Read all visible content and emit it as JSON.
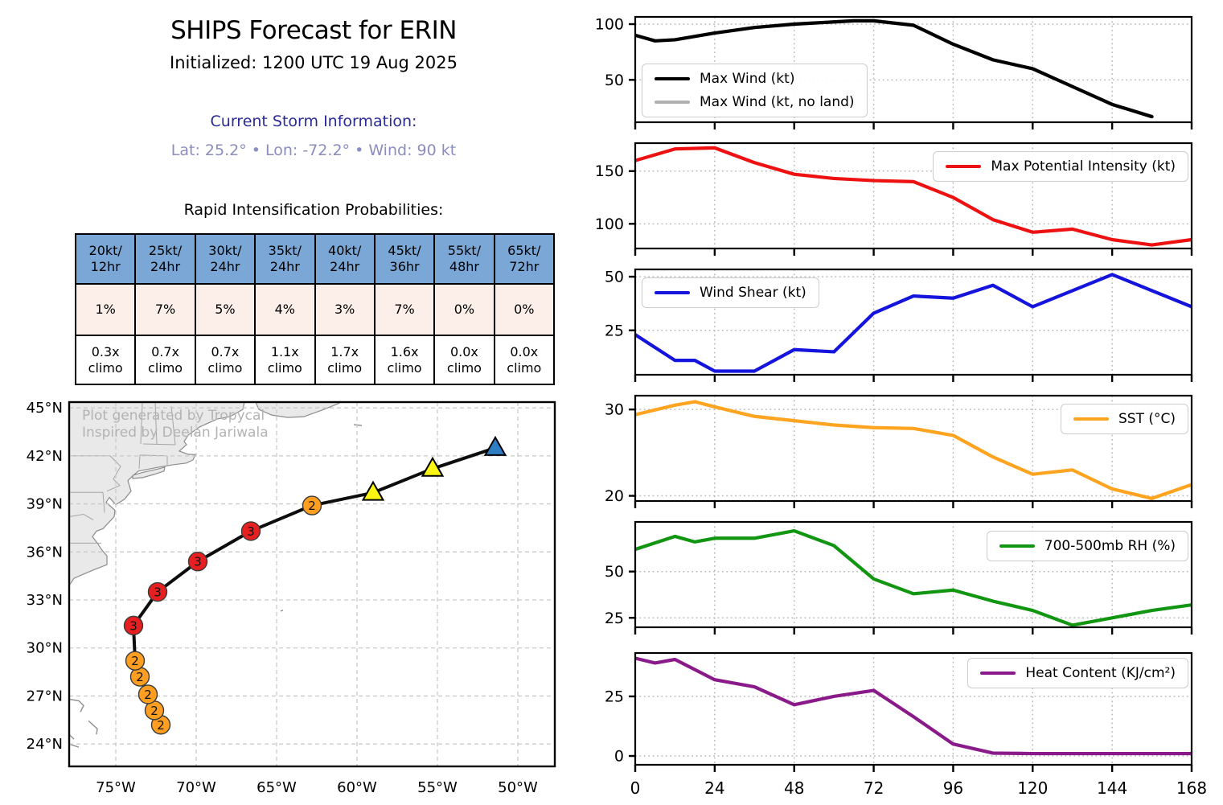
{
  "header": {
    "title": "SHIPS Forecast for ERIN",
    "initialized": "Initialized: 1200 UTC 19 Aug 2025",
    "storm_info_heading": "Current Storm Information:",
    "storm_info": "Lat: 25.2°  •  Lon: -72.2°  •  Wind: 90 kt"
  },
  "ri_table": {
    "title": "Rapid Intensification Probabilities:",
    "headers": [
      "20kt/\n12hr",
      "25kt/\n24hr",
      "30kt/\n24hr",
      "35kt/\n24hr",
      "40kt/\n24hr",
      "45kt/\n36hr",
      "55kt/\n48hr",
      "65kt/\n72hr"
    ],
    "probabilities": [
      "1%",
      "7%",
      "5%",
      "4%",
      "3%",
      "7%",
      "0%",
      "0%"
    ],
    "climo": [
      "0.3x\nclimo",
      "0.7x\nclimo",
      "0.7x\nclimo",
      "1.1x\nclimo",
      "1.7x\nclimo",
      "1.6x\nclimo",
      "0.0x\nclimo",
      "0.0x\nclimo"
    ]
  },
  "map": {
    "watermark_line1": "Plot generated by Tropycal",
    "watermark_line2": "Inspired by Deelan Jariwala",
    "view": {
      "lon_min": -77.9,
      "lon_max": -47.7,
      "lat_min": 22.6,
      "lat_max": 45.36
    },
    "lon_ticks": [
      {
        "lon": -75,
        "label": "75°W"
      },
      {
        "lon": -70,
        "label": "70°W"
      },
      {
        "lon": -65,
        "label": "65°W"
      },
      {
        "lon": -60,
        "label": "60°W"
      },
      {
        "lon": -55,
        "label": "55°W"
      },
      {
        "lon": -50,
        "label": "50°W"
      }
    ],
    "lat_ticks": [
      {
        "lat": 45,
        "label": "45°N"
      },
      {
        "lat": 42,
        "label": "42°N"
      },
      {
        "lat": 39,
        "label": "39°N"
      },
      {
        "lat": 36,
        "label": "36°N"
      },
      {
        "lat": 33,
        "label": "33°N"
      },
      {
        "lat": 30,
        "label": "30°N"
      },
      {
        "lat": 27,
        "label": "27°N"
      },
      {
        "lat": 24,
        "label": "24°N"
      }
    ],
    "colors": {
      "land": "#e9e9e9",
      "coast": "#8c8c8c",
      "grid": "#c9c9c9",
      "track": "#0d0d0d",
      "cat2": "#FF9E21",
      "cat3": "#E62020",
      "storm_yellow": "#FAF513",
      "blue_marker": "#2F7DC3"
    },
    "track": [
      {
        "lat": 25.2,
        "lon": -72.2,
        "marker": "circle",
        "color": "#FF9E21",
        "label": "2"
      },
      {
        "lat": 26.1,
        "lon": -72.6,
        "marker": "circle",
        "color": "#FF9E21",
        "label": "2"
      },
      {
        "lat": 27.1,
        "lon": -73.0,
        "marker": "circle",
        "color": "#FF9E21",
        "label": "2"
      },
      {
        "lat": 28.2,
        "lon": -73.5,
        "marker": "circle",
        "color": "#FF9E21",
        "label": "2"
      },
      {
        "lat": 29.2,
        "lon": -73.8,
        "marker": "circle",
        "color": "#FF9E21",
        "label": "2"
      },
      {
        "lat": 31.4,
        "lon": -73.9,
        "marker": "circle",
        "color": "#E62020",
        "label": "3"
      },
      {
        "lat": 33.5,
        "lon": -72.4,
        "marker": "circle",
        "color": "#E62020",
        "label": "3"
      },
      {
        "lat": 35.4,
        "lon": -69.9,
        "marker": "circle",
        "color": "#E62020",
        "label": "3"
      },
      {
        "lat": 37.3,
        "lon": -66.6,
        "marker": "circle",
        "color": "#E62020",
        "label": "3"
      },
      {
        "lat": 38.9,
        "lon": -62.8,
        "marker": "circle",
        "color": "#FF9E21",
        "label": "2"
      },
      {
        "lat": 39.7,
        "lon": -59.0,
        "marker": "triangle",
        "color": "#FAF513",
        "label": ""
      },
      {
        "lat": 41.2,
        "lon": -55.3,
        "marker": "triangle",
        "color": "#FAF513",
        "label": ""
      },
      {
        "lat": 42.5,
        "lon": -51.4,
        "marker": "triangle",
        "color": "#2F7DC3",
        "label": ""
      }
    ],
    "coastlines": {
      "land_polys": [
        [
          [
            -77.9,
            45.36
          ],
          [
            -67.0,
            45.36
          ],
          [
            -67.1,
            44.9
          ],
          [
            -67.9,
            44.45
          ],
          [
            -68.7,
            44.3
          ],
          [
            -69.8,
            43.8
          ],
          [
            -70.5,
            43.3
          ],
          [
            -70.75,
            42.9
          ],
          [
            -70.6,
            42.7
          ],
          [
            -71.05,
            42.3
          ],
          [
            -70.5,
            42.1
          ],
          [
            -70.05,
            42.08
          ],
          [
            -70.2,
            41.75
          ],
          [
            -70.6,
            41.55
          ],
          [
            -71.4,
            41.45
          ],
          [
            -72.3,
            41.3
          ],
          [
            -73.6,
            41.05
          ],
          [
            -74.05,
            40.65
          ],
          [
            -74.25,
            40.45
          ],
          [
            -74.05,
            39.8
          ],
          [
            -74.45,
            39.3
          ],
          [
            -75.0,
            38.95
          ],
          [
            -75.4,
            39.4
          ],
          [
            -75.6,
            39.1
          ],
          [
            -75.05,
            38.6
          ],
          [
            -75.1,
            38.2
          ],
          [
            -75.8,
            37.45
          ],
          [
            -76.2,
            37.3
          ],
          [
            -76.45,
            36.95
          ],
          [
            -76.15,
            36.55
          ],
          [
            -75.85,
            36.1
          ],
          [
            -75.55,
            35.75
          ],
          [
            -75.55,
            35.2
          ],
          [
            -76.2,
            34.95
          ],
          [
            -76.8,
            34.7
          ],
          [
            -77.6,
            34.35
          ],
          [
            -77.9,
            33.9
          ]
        ],
        [
          [
            -73.95,
            40.78
          ],
          [
            -73.4,
            40.95
          ],
          [
            -72.3,
            41.2
          ],
          [
            -71.95,
            41.3
          ],
          [
            -72.0,
            41.05
          ],
          [
            -72.6,
            40.85
          ],
          [
            -73.3,
            40.65
          ],
          [
            -73.95,
            40.58
          ]
        ],
        [
          [
            -66.3,
            45.36
          ],
          [
            -66.1,
            44.9
          ],
          [
            -65.3,
            44.55
          ],
          [
            -64.3,
            44.4
          ],
          [
            -63.3,
            44.45
          ],
          [
            -62.2,
            44.85
          ],
          [
            -61.2,
            45.25
          ],
          [
            -61.0,
            45.36
          ]
        ]
      ],
      "island_lines": [
        [
          [
            -77.9,
            26.8
          ],
          [
            -77.3,
            26.7
          ],
          [
            -77.0,
            26.4
          ],
          [
            -77.2,
            26.0
          ]
        ],
        [
          [
            -76.7,
            25.45
          ],
          [
            -76.15,
            24.95
          ],
          [
            -76.2,
            24.6
          ]
        ],
        [
          [
            -77.6,
            24.3
          ],
          [
            -77.9,
            24.6
          ]
        ],
        [
          [
            -77.9,
            24.0
          ],
          [
            -77.3,
            23.8
          ]
        ],
        [
          [
            -64.75,
            32.3
          ],
          [
            -64.6,
            32.36
          ]
        ],
        [
          [
            -60.2,
            43.95
          ],
          [
            -59.7,
            43.9
          ]
        ]
      ],
      "state_lines": [
        [
          [
            -73.35,
            45.36
          ],
          [
            -73.45,
            42.75
          ]
        ],
        [
          [
            -72.55,
            45.36
          ],
          [
            -72.45,
            42.73
          ]
        ],
        [
          [
            -71.55,
            45.1
          ],
          [
            -71.3,
            42.7
          ]
        ],
        [
          [
            -73.3,
            42.75
          ],
          [
            -71.3,
            42.7
          ]
        ],
        [
          [
            -73.5,
            42.05
          ],
          [
            -71.8,
            42.0
          ]
        ],
        [
          [
            -71.8,
            42.0
          ],
          [
            -71.8,
            41.4
          ]
        ],
        [
          [
            -73.5,
            42.05
          ],
          [
            -73.55,
            41.2
          ]
        ],
        [
          [
            -77.9,
            42.0
          ],
          [
            -75.35,
            42.0
          ]
        ],
        [
          [
            -75.35,
            42.0
          ],
          [
            -74.7,
            41.35
          ],
          [
            -75.15,
            40.55
          ],
          [
            -74.75,
            40.15
          ],
          [
            -75.55,
            39.8
          ]
        ],
        [
          [
            -77.9,
            39.72
          ],
          [
            -75.8,
            39.72
          ]
        ],
        [
          [
            -75.8,
            39.72
          ],
          [
            -75.7,
            38.45
          ]
        ],
        [
          [
            -77.9,
            36.55
          ],
          [
            -75.9,
            36.55
          ]
        ],
        [
          [
            -77.9,
            38.2
          ],
          [
            -77.0,
            38.35
          ],
          [
            -76.4,
            38.0
          ]
        ]
      ]
    }
  },
  "chart_axis": {
    "xlim": [
      0,
      168
    ],
    "xticks": [
      0,
      24,
      48,
      72,
      96,
      120,
      144,
      168
    ],
    "xgrid": [
      24,
      48,
      72,
      96,
      120,
      144
    ],
    "xtick_labels": [
      "0",
      "24",
      "48",
      "72",
      "96",
      "120",
      "144",
      "168"
    ]
  },
  "chart_data": [
    {
      "type": "line",
      "name": "max_wind",
      "ylabel": "Max Wind (kt)",
      "ylim": [
        12,
        106.5
      ],
      "yticks": [
        50,
        100
      ],
      "x": [
        0,
        6,
        12,
        24,
        36,
        48,
        60,
        66,
        72,
        84,
        96,
        108,
        120,
        132,
        144,
        156
      ],
      "series": [
        {
          "name": "Max Wind (kt)",
          "color": "#000000",
          "values": [
            90,
            85,
            86,
            92,
            97,
            100,
            102,
            103,
            103,
            99,
            82,
            68,
            60,
            44,
            28,
            17
          ]
        },
        {
          "name": "Max Wind (kt, no land)",
          "color": "#b0b0b0",
          "values": [
            90,
            85,
            86,
            92,
            97,
            100,
            102,
            103,
            103,
            99,
            82,
            68,
            60,
            44,
            28,
            17
          ]
        }
      ]
    },
    {
      "type": "line",
      "name": "max_potential_intensity",
      "ylabel": "Max Potential Intensity (kt)",
      "ylim": [
        76.6,
        176.5
      ],
      "yticks": [
        100,
        150
      ],
      "x": [
        0,
        12,
        24,
        36,
        48,
        60,
        72,
        84,
        96,
        108,
        120,
        132,
        144,
        156,
        168
      ],
      "series": [
        {
          "name": "Max Potential Intensity (kt)",
          "color": "#ee1111",
          "values": [
            160,
            171,
            172,
            158,
            147,
            143,
            141,
            140,
            125,
            104,
            92,
            95,
            85,
            80,
            85
          ]
        }
      ]
    },
    {
      "type": "line",
      "name": "wind_shear",
      "ylabel": "Wind Shear (kt)",
      "ylim": [
        4.3,
        53.4
      ],
      "yticks": [
        25,
        50
      ],
      "x": [
        0,
        12,
        18,
        24,
        36,
        48,
        60,
        72,
        84,
        96,
        108,
        120,
        144,
        168
      ],
      "series": [
        {
          "name": "Wind Shear (kt)",
          "color": "#1414dd",
          "values": [
            23,
            11,
            11,
            6,
            6,
            16,
            15,
            33,
            41,
            40,
            46,
            36,
            51,
            36
          ]
        }
      ]
    },
    {
      "type": "line",
      "name": "sst",
      "ylabel": "SST (°C)",
      "ylim": [
        19.4,
        31.6
      ],
      "yticks": [
        20,
        30
      ],
      "x": [
        0,
        12,
        18,
        24,
        36,
        48,
        60,
        72,
        84,
        96,
        108,
        120,
        132,
        144,
        156,
        168
      ],
      "series": [
        {
          "name": "SST (°C)",
          "color": "#FFA420",
          "values": [
            29.4,
            30.5,
            30.9,
            30.3,
            29.2,
            28.7,
            28.2,
            27.9,
            27.8,
            27.0,
            24.5,
            22.5,
            23.0,
            20.8,
            19.7,
            21.3
          ]
        }
      ]
    },
    {
      "type": "line",
      "name": "rh_700_500",
      "ylabel": "700-500mb RH (%)",
      "ylim": [
        19.9,
        76.8
      ],
      "yticks": [
        25,
        50
      ],
      "x": [
        0,
        12,
        18,
        24,
        36,
        48,
        60,
        72,
        84,
        96,
        108,
        120,
        132,
        144,
        156,
        168
      ],
      "series": [
        {
          "name": "700-500mb RH (%)",
          "color": "#129612",
          "values": [
            62,
            69,
            66,
            68,
            68,
            72,
            64,
            46,
            38,
            40,
            34,
            29,
            21,
            25,
            29,
            32
          ]
        }
      ]
    },
    {
      "type": "line",
      "name": "heat_content",
      "ylabel": "Heat Content (KJ/cm²)",
      "ylim": [
        -3.7,
        43.2
      ],
      "yticks": [
        0,
        25
      ],
      "x": [
        0,
        6,
        12,
        24,
        36,
        48,
        60,
        72,
        84,
        96,
        108,
        120,
        132,
        144,
        156,
        168
      ],
      "series": [
        {
          "name": "Heat Content (KJ/cm²)",
          "color": "#8A1A8A",
          "values": [
            41,
            39,
            40.5,
            32,
            29,
            21.5,
            25,
            27.5,
            16.5,
            5,
            1.2,
            1,
            1,
            1,
            1,
            1
          ]
        }
      ]
    }
  ]
}
